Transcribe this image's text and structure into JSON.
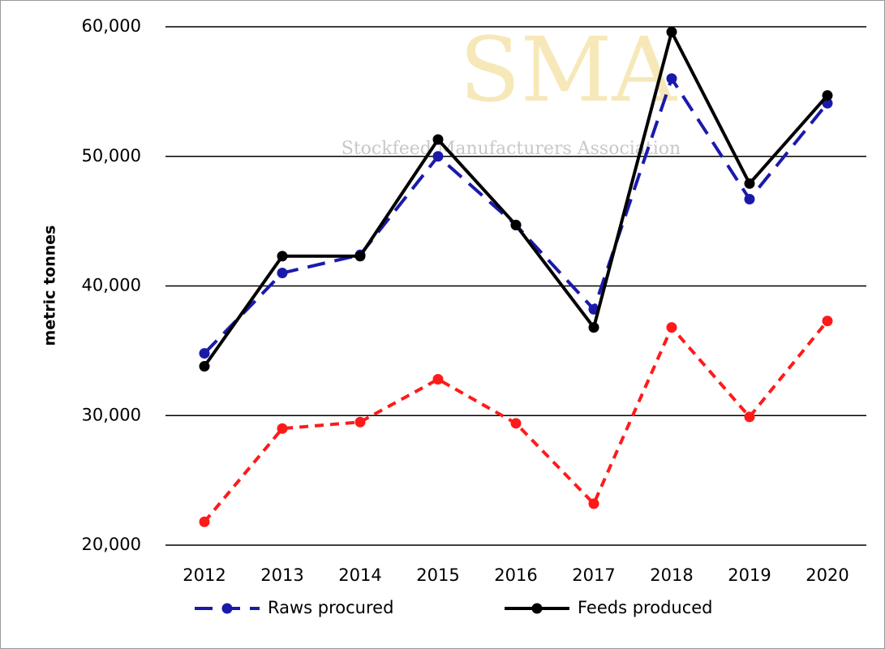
{
  "chart_data": {
    "type": "line",
    "y_label": "metric tonnes",
    "watermark_title": "SMA",
    "watermark_subtitle": "Stockfeed Manufacturers Association",
    "categories": [
      "2012",
      "2013",
      "2014",
      "2015",
      "2016",
      "2017",
      "2018",
      "2019",
      "2020"
    ],
    "series": [
      {
        "name": "Raws procured",
        "color": "#1a1aaa",
        "dash": true,
        "values": [
          34800,
          41000,
          42400,
          50000,
          44700,
          38200,
          56000,
          46700,
          54100
        ]
      },
      {
        "name": "Feeds produced",
        "color": "#000000",
        "dash": false,
        "values": [
          33800,
          42300,
          42300,
          51300,
          44700,
          36800,
          59600,
          47900,
          54700
        ]
      },
      {
        "color": "#ff1a1a",
        "dash": true,
        "values": [
          21800,
          29000,
          29500,
          32800,
          29400,
          23200,
          36800,
          29900,
          37300
        ]
      }
    ],
    "ylim": [
      20000,
      60000
    ],
    "yticks": [
      {
        "value": 20000,
        "label": "20,000"
      },
      {
        "value": 30000,
        "label": "30,000"
      },
      {
        "value": 40000,
        "label": "40,000"
      },
      {
        "value": 50000,
        "label": "50,000"
      },
      {
        "value": 60000,
        "label": "60,000"
      }
    ],
    "grid": true
  }
}
